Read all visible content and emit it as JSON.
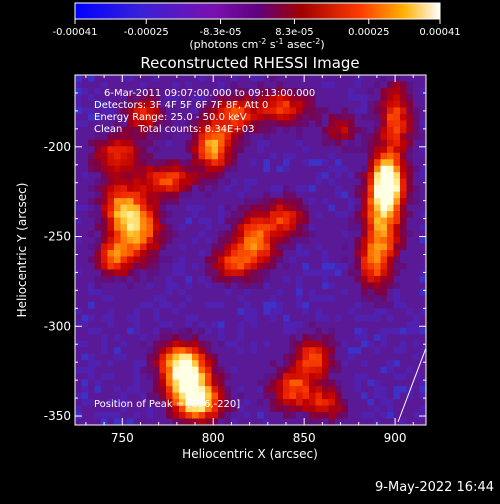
{
  "chart_data": {
    "type": "heatmap",
    "title": "Reconstructed RHESSI Image",
    "xlabel": "Heliocentric X (arcsec)",
    "ylabel": "Heliocentric Y (arcsec)",
    "xlim": [
      724,
      917
    ],
    "ylim": [
      -355,
      -160
    ],
    "x_ticks": [
      750,
      800,
      850,
      900
    ],
    "y_ticks": [
      -200,
      -250,
      -300,
      -350
    ],
    "grid": false,
    "colorbar": {
      "position": "top",
      "range": [
        -0.00041,
        0.00041
      ],
      "tick_values": [
        -0.00041,
        -0.00025,
        -8.3e-05,
        8.3e-05,
        0.00025,
        0.00041
      ],
      "tick_labels": [
        "-0.00041",
        "-0.00025",
        "-8.3e-05",
        "8.3e-05",
        "0.00025",
        "0.00041"
      ],
      "unit_prefix": "(photons cm",
      "unit_exp1": "-2",
      "unit_mid": " s",
      "unit_exp2": "-1",
      "unit_mid2": " asec",
      "unit_exp3": "-2",
      "unit_suffix": ")"
    },
    "annotations": [
      "6-Mar-2011 09:07:00.000 to 09:13:00.000",
      "Detectors: 3F 4F 5F 6F 7F 8F, Att 0",
      "Energy Range: 25.0 - 50.0 keV",
      "Clean     Total counts: 8.34E+03"
    ],
    "peak_label": "Position of Peak = [896,-220]",
    "peak_position": [
      896,
      -220
    ],
    "sources": [
      {
        "x": 896,
        "y": -220,
        "intensity": 1.0,
        "sx": 6,
        "sy": 10
      },
      {
        "x": 893,
        "y": -240,
        "intensity": 0.7,
        "sx": 7,
        "sy": 18
      },
      {
        "x": 900,
        "y": -185,
        "intensity": 0.55,
        "sx": 6,
        "sy": 14
      },
      {
        "x": 888,
        "y": -265,
        "intensity": 0.45,
        "sx": 6,
        "sy": 10
      },
      {
        "x": 786,
        "y": -330,
        "intensity": 0.92,
        "sx": 9,
        "sy": 9
      },
      {
        "x": 792,
        "y": -343,
        "intensity": 0.8,
        "sx": 9,
        "sy": 7
      },
      {
        "x": 782,
        "y": -318,
        "intensity": 0.6,
        "sx": 8,
        "sy": 7
      },
      {
        "x": 757,
        "y": -245,
        "intensity": 0.85,
        "sx": 9,
        "sy": 12
      },
      {
        "x": 745,
        "y": -262,
        "intensity": 0.55,
        "sx": 6,
        "sy": 7
      },
      {
        "x": 748,
        "y": -205,
        "intensity": 0.5,
        "sx": 9,
        "sy": 8
      },
      {
        "x": 762,
        "y": -182,
        "intensity": 0.45,
        "sx": 7,
        "sy": 7
      },
      {
        "x": 800,
        "y": -200,
        "intensity": 0.78,
        "sx": 7,
        "sy": 9
      },
      {
        "x": 812,
        "y": -182,
        "intensity": 0.55,
        "sx": 8,
        "sy": 7
      },
      {
        "x": 838,
        "y": -178,
        "intensity": 0.5,
        "sx": 10,
        "sy": 7
      },
      {
        "x": 775,
        "y": -218,
        "intensity": 0.55,
        "sx": 10,
        "sy": 6
      },
      {
        "x": 823,
        "y": -252,
        "intensity": 0.68,
        "sx": 8,
        "sy": 10
      },
      {
        "x": 810,
        "y": -265,
        "intensity": 0.5,
        "sx": 8,
        "sy": 6
      },
      {
        "x": 840,
        "y": -240,
        "intensity": 0.5,
        "sx": 7,
        "sy": 7
      },
      {
        "x": 855,
        "y": -318,
        "intensity": 0.55,
        "sx": 7,
        "sy": 8
      },
      {
        "x": 844,
        "y": -335,
        "intensity": 0.55,
        "sx": 8,
        "sy": 8
      },
      {
        "x": 862,
        "y": -343,
        "intensity": 0.45,
        "sx": 7,
        "sy": 6
      },
      {
        "x": 748,
        "y": -232,
        "intensity": 0.45,
        "sx": 7,
        "sy": 8
      },
      {
        "x": 870,
        "y": -190,
        "intensity": 0.35,
        "sx": 6,
        "sy": 6
      }
    ]
  },
  "footer": {
    "date": "9-May-2022 16:44"
  },
  "colors": {
    "background": "#000000",
    "negative": "#5a1a9a",
    "deep_negative": "#2a2ad0",
    "peak": "#ffffe0"
  }
}
